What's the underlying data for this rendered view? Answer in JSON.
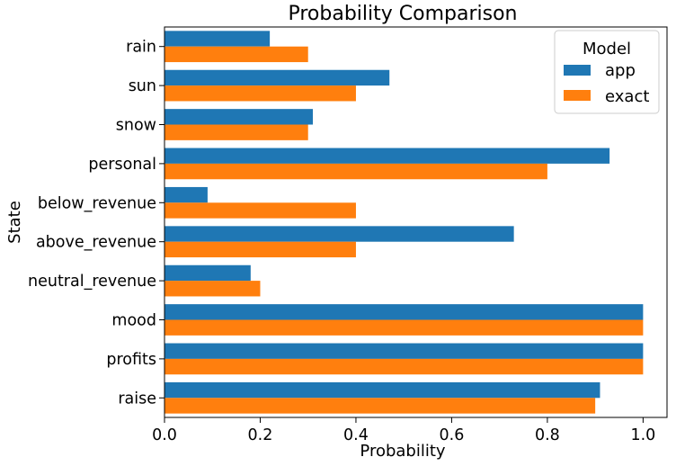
{
  "chart_data": {
    "type": "bar",
    "orientation": "horizontal",
    "title": "Probability Comparison",
    "xlabel": "Probability",
    "ylabel": "State",
    "xlim": [
      0,
      1.05
    ],
    "xticks": [
      "0.0",
      "0.2",
      "0.4",
      "0.6",
      "0.8",
      "1.0"
    ],
    "xtick_values": [
      0,
      0.2,
      0.4,
      0.6,
      0.8,
      1.0
    ],
    "grid": false,
    "categories": [
      "rain",
      "sun",
      "snow",
      "personal",
      "below_revenue",
      "above_revenue",
      "neutral_revenue",
      "mood",
      "profits",
      "raise"
    ],
    "series": [
      {
        "name": "app",
        "color": "#1f77b4",
        "values": [
          0.22,
          0.47,
          0.31,
          0.93,
          0.09,
          0.73,
          0.18,
          1.0,
          1.0,
          0.91
        ]
      },
      {
        "name": "exact",
        "color": "#ff7f0e",
        "values": [
          0.3,
          0.4,
          0.3,
          0.8,
          0.4,
          0.4,
          0.2,
          1.0,
          1.0,
          0.9
        ]
      }
    ],
    "legend": {
      "title": "Model",
      "placement": "top-right"
    }
  }
}
